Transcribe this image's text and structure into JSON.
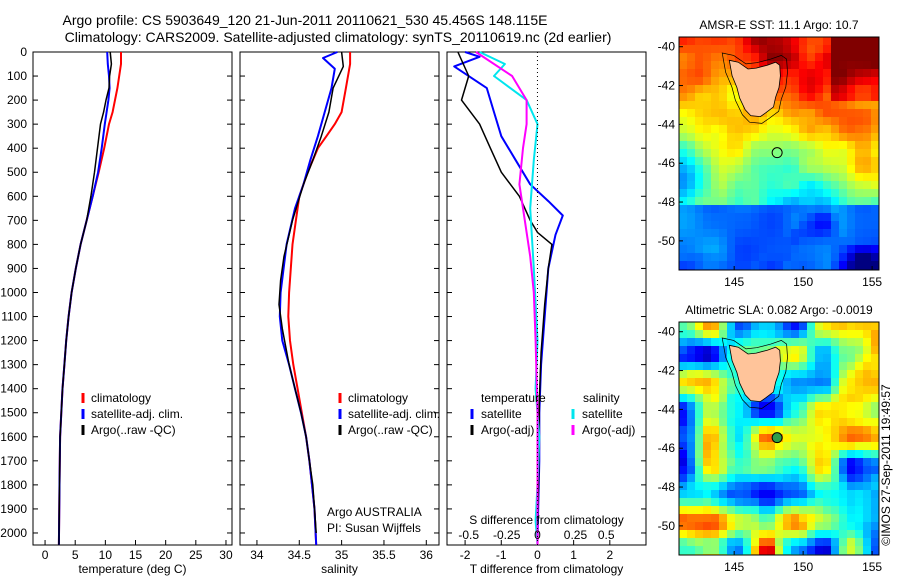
{
  "header": {
    "line1": "Argo profile: CS 5903649_120 21-Jun-2011 20110621_530 45.456S 148.115E",
    "line2": "Climatology: CARS2009. Satellite-adjusted climatology: synTS_20110619.nc (2d earlier)"
  },
  "watermark": "©IMOS 27-Sep-2011 19:49:57",
  "colors": {
    "climatology": "#ff0000",
    "satellite": "#0000ff",
    "argo": "#000000",
    "salinity_satellite": "#00e5ee",
    "salinity_argo": "#ff00ff",
    "land": "#ffc49a",
    "station_marker": "#000000"
  },
  "chart_data": [
    {
      "type": "line",
      "id": "temperature-profile",
      "xlabel": "temperature (deg C)",
      "xlim": [
        -2,
        31
      ],
      "xticks": [
        0,
        5,
        10,
        15,
        20,
        25,
        30
      ],
      "ylim": [
        2050,
        0
      ],
      "yticks": [
        0,
        100,
        200,
        300,
        400,
        500,
        600,
        700,
        800,
        900,
        1000,
        1100,
        1200,
        1300,
        1400,
        1500,
        1600,
        1700,
        1800,
        1900,
        2000
      ],
      "legend": [
        "climatology",
        "satellite-adj. clim.",
        "Argo(..raw -QC)"
      ],
      "legend_placement": "lower-right",
      "series": [
        {
          "name": "climatology",
          "color": "#ff0000",
          "width": 2,
          "x": [
            12.6,
            12.6,
            12.3,
            12.0,
            11.6,
            11.2,
            10.6,
            9.8,
            8.9,
            7.9,
            6.9,
            5.9,
            5.1,
            4.4,
            3.9,
            3.5,
            3.2,
            2.9,
            2.7,
            2.5,
            2.4,
            2.3
          ],
          "y": [
            0,
            50,
            100,
            150,
            200,
            250,
            300,
            400,
            500,
            600,
            700,
            800,
            900,
            1000,
            1100,
            1200,
            1300,
            1400,
            1500,
            1600,
            1800,
            2050
          ]
        },
        {
          "name": "satellite-adj. clim.",
          "color": "#0000ff",
          "width": 2,
          "x": [
            10.3,
            10.4,
            10.6,
            10.7,
            10.5,
            10.2,
            9.9,
            9.4,
            8.8,
            7.9,
            6.9,
            5.9,
            5.1,
            4.4,
            3.9,
            3.5,
            3.2,
            2.9,
            2.7,
            2.5,
            2.4,
            2.3
          ],
          "y": [
            0,
            50,
            100,
            150,
            200,
            250,
            300,
            400,
            500,
            600,
            700,
            800,
            900,
            1000,
            1100,
            1200,
            1300,
            1400,
            1500,
            1600,
            1800,
            2050
          ]
        },
        {
          "name": "Argo(..raw -QC)",
          "color": "#000000",
          "width": 1.5,
          "x": [
            10.8,
            11.0,
            10.7,
            10.6,
            10.1,
            9.7,
            9.2,
            8.7,
            8.2,
            7.6,
            6.9,
            5.9,
            5.1,
            4.4,
            3.9,
            3.5,
            3.2,
            2.9,
            2.7,
            2.5,
            2.4,
            2.3
          ],
          "y": [
            0,
            50,
            100,
            150,
            200,
            250,
            300,
            400,
            500,
            600,
            700,
            800,
            900,
            1000,
            1100,
            1200,
            1300,
            1400,
            1500,
            1600,
            1800,
            2050
          ]
        }
      ]
    },
    {
      "type": "line",
      "id": "salinity-profile",
      "xlabel": "salinity",
      "xlim": [
        33.8,
        36.15
      ],
      "xticks": [
        34,
        34.5,
        35,
        35.5,
        36
      ],
      "ylim": [
        2050,
        0
      ],
      "legend": [
        "climatology",
        "satellite-adj. clim.",
        "Argo(..raw -QC)"
      ],
      "legend_placement": "lower-right",
      "annotation": [
        "Argo AUSTRALIA",
        "PI: Susan Wijffels"
      ],
      "series": [
        {
          "name": "climatology",
          "color": "#ff0000",
          "width": 2,
          "x": [
            35.1,
            35.1,
            35.05,
            35.0,
            34.92,
            34.82,
            34.72,
            34.6,
            34.5,
            34.42,
            34.38,
            34.37,
            34.39,
            34.43,
            34.48,
            34.53,
            34.58,
            34.62,
            34.65,
            34.68,
            34.7
          ],
          "y": [
            0,
            50,
            150,
            250,
            300,
            350,
            400,
            500,
            600,
            800,
            1000,
            1100,
            1200,
            1300,
            1400,
            1500,
            1600,
            1700,
            1800,
            1900,
            2050
          ]
        },
        {
          "name": "satellite-adj. clim.",
          "color": "#0000ff",
          "width": 2,
          "x": [
            34.95,
            34.78,
            34.92,
            34.88,
            34.8,
            34.72,
            34.63,
            34.55,
            34.45,
            34.35,
            34.28,
            34.27,
            34.3,
            34.38,
            34.45,
            34.52,
            34.58,
            34.62,
            34.65,
            34.68,
            34.7
          ],
          "y": [
            0,
            25,
            70,
            150,
            250,
            350,
            450,
            550,
            650,
            800,
            1000,
            1100,
            1200,
            1300,
            1400,
            1500,
            1600,
            1700,
            1800,
            1900,
            2050
          ]
        },
        {
          "name": "Argo(..raw -QC)",
          "color": "#000000",
          "width": 1.5,
          "x": [
            35.0,
            35.02,
            34.9,
            34.85,
            34.76,
            34.66,
            34.55,
            34.42,
            34.32,
            34.28,
            34.26,
            34.3,
            34.38,
            34.45,
            34.52,
            34.58,
            34.62,
            34.66,
            34.7
          ],
          "y": [
            0,
            60,
            150,
            250,
            350,
            450,
            550,
            700,
            850,
            950,
            1050,
            1150,
            1300,
            1400,
            1500,
            1600,
            1700,
            1800,
            2000
          ]
        }
      ]
    },
    {
      "type": "line",
      "id": "difference-profile",
      "xlabel": "T difference from climatology",
      "xlabel_top": "S difference from climatology",
      "xlim": [
        -2.5,
        3.0
      ],
      "xticks": [
        -2,
        -1,
        0,
        1,
        2
      ],
      "s_ticks": [
        "-0.5",
        "-0.25",
        "0",
        "0.25",
        "0.5"
      ],
      "ylim": [
        2050,
        0
      ],
      "legend": [
        "temperature",
        "satellite",
        "Argo(-adj)",
        "salinity",
        "satellite",
        "Argo(-adj)"
      ],
      "legend_placement": "lower-center",
      "series": [
        {
          "name": "satellite",
          "color": "#0000ff",
          "width": 2,
          "x": [
            -2.0,
            -1.6,
            -2.3,
            -1.4,
            -1.2,
            -1.0,
            -0.6,
            -0.2,
            0.3,
            0.7,
            0.5,
            0.3,
            0.2,
            0.1,
            0.05,
            0.05,
            0.02,
            0.0
          ],
          "y": [
            0,
            20,
            60,
            150,
            250,
            350,
            450,
            550,
            620,
            680,
            760,
            900,
            1100,
            1300,
            1500,
            1700,
            1900,
            2050
          ]
        },
        {
          "name": "Argo(-adj)",
          "color": "#000000",
          "width": 1.5,
          "x": [
            -2.2,
            -1.9,
            -2.1,
            -1.6,
            -1.3,
            -1.0,
            -0.5,
            -0.2,
            0.0,
            0.4,
            0.3,
            0.2,
            0.1,
            0.05,
            0.05,
            0.02,
            0.0
          ],
          "y": [
            0,
            100,
            200,
            300,
            400,
            500,
            600,
            700,
            750,
            800,
            900,
            1050,
            1250,
            1450,
            1650,
            1850,
            2050
          ]
        },
        {
          "name": "salinity satellite",
          "color": "#00e5ee",
          "width": 2,
          "x": [
            -1.6,
            -0.9,
            -1.2,
            -0.3,
            0.0,
            -0.1,
            -0.2,
            -0.1,
            0.0,
            -0.05,
            0.05,
            0.0,
            -0.05,
            0.0
          ],
          "y": [
            0,
            50,
            100,
            200,
            300,
            450,
            650,
            900,
            1200,
            1400,
            1600,
            1800,
            1950,
            2050
          ]
        },
        {
          "name": "salinity Argo(-adj)",
          "color": "#ff00ff",
          "width": 2,
          "x": [
            -1.7,
            -0.7,
            -0.3,
            -0.3,
            -0.4,
            -0.5,
            -0.35,
            -0.2,
            -0.1,
            -0.05,
            0.0,
            0.0
          ],
          "y": [
            0,
            100,
            200,
            300,
            400,
            550,
            700,
            850,
            1000,
            1200,
            1500,
            2050
          ]
        }
      ]
    },
    {
      "type": "heatmap",
      "id": "sst-map",
      "title": "AMSR-E SST: 11.1 Argo: 10.7",
      "xlim": [
        141,
        155.5
      ],
      "ylim": [
        -51.5,
        -39.5
      ],
      "xticks": [
        145,
        150,
        155
      ],
      "yticks": [
        -40,
        -42,
        -44,
        -46,
        -48,
        -50
      ],
      "marker": {
        "lon": 148.115,
        "lat": -45.456
      }
    },
    {
      "type": "heatmap",
      "id": "sla-map",
      "title": "Altimetric SLA: 0.082 Argo: -0.0019",
      "xlim": [
        141,
        155.5
      ],
      "ylim": [
        -51.5,
        -39.5
      ],
      "xticks": [
        145,
        150,
        155
      ],
      "yticks": [
        -40,
        -42,
        -44,
        -46,
        -48,
        -50
      ],
      "marker": {
        "lon": 148.115,
        "lat": -45.456
      }
    }
  ]
}
